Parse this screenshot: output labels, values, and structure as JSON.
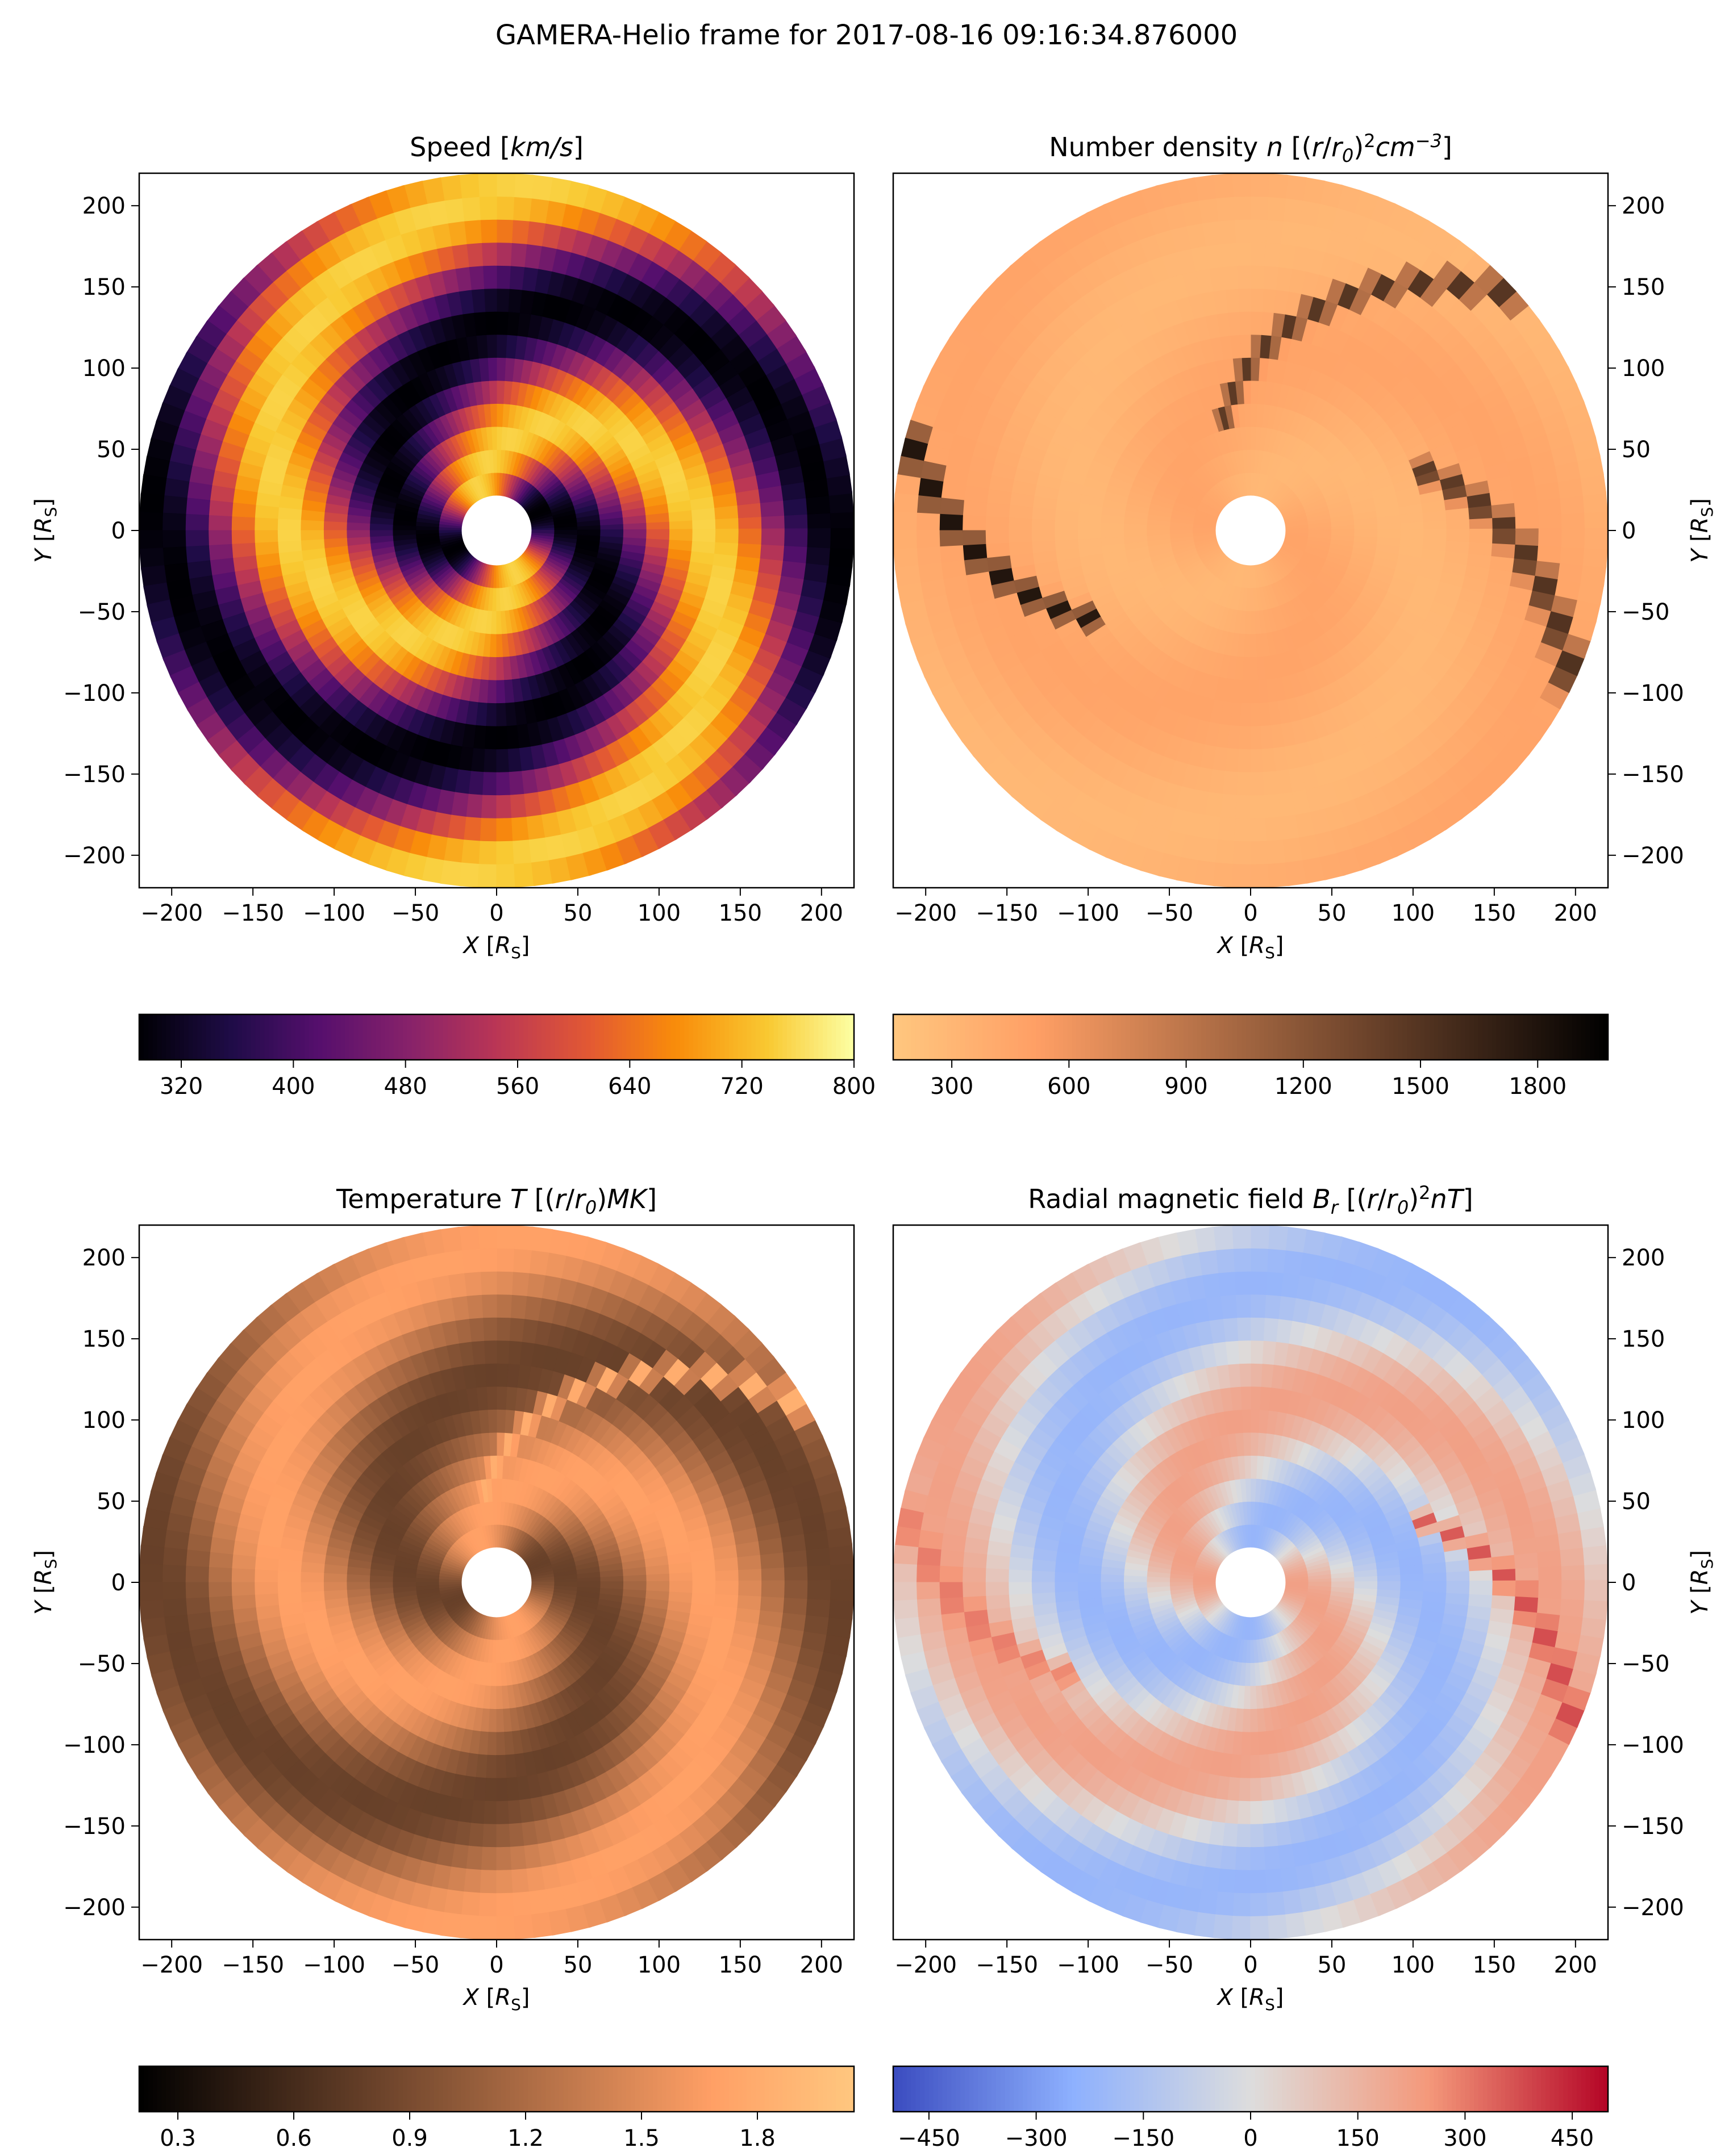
{
  "figure_title": "GAMERA-Helio frame for 2017-08-16 09:16:34.876000",
  "chart_data": [
    {
      "type": "heatmap",
      "title_text": "Speed [",
      "title_math": "km/s",
      "title_tail": "]",
      "xlabel": "X [R",
      "xlabel_sub": "S",
      "ylabel": "Y [R",
      "ylabel_sub": "S",
      "axis_unit_close": "]",
      "xlim": [
        -220,
        220
      ],
      "ylim": [
        -220,
        220
      ],
      "xticks": [
        -200,
        -150,
        -100,
        -50,
        0,
        50,
        100,
        150,
        200
      ],
      "yticks": [
        -200,
        -150,
        -100,
        -50,
        0,
        50,
        100,
        150,
        200
      ],
      "ytick_side": "left",
      "domain": {
        "inner_radius": 21.5,
        "outer_radius": 220
      },
      "colormap": "inferno",
      "colorbar": {
        "min": 290,
        "max": 800,
        "ticks": [
          320,
          400,
          480,
          560,
          640,
          720,
          800
        ]
      },
      "field": {
        "base": 520,
        "amp": 230,
        "spiral": 0.006,
        "phase": 2.75
      },
      "features": []
    },
    {
      "type": "heatmap",
      "title_text": "Number density ",
      "title_math": "n",
      "title_tail": " [(r/r0)2cm-3]",
      "xlabel": "X [R",
      "xlabel_sub": "S",
      "ylabel": "Y [R",
      "ylabel_sub": "S",
      "axis_unit_close": "]",
      "xlim": [
        -220,
        220
      ],
      "ylim": [
        -220,
        220
      ],
      "xticks": [
        -200,
        -150,
        -100,
        -50,
        0,
        50,
        100,
        150,
        200
      ],
      "yticks": [
        -200,
        -150,
        -100,
        -50,
        0,
        50,
        100,
        150,
        200
      ],
      "ytick_side": "right",
      "domain": {
        "inner_radius": 21.5,
        "outer_radius": 220
      },
      "colormap": "copper_r",
      "colorbar": {
        "min": 150,
        "max": 1980,
        "ticks": [
          300,
          600,
          900,
          1200,
          1500,
          1800
        ]
      },
      "field": {
        "base": 380,
        "amp": 90,
        "spiral": 0.006,
        "phase": 0.9
      },
      "features": [
        {
          "angle_deg": 108,
          "start_r": 60,
          "end_r": 220,
          "value": 1500
        },
        {
          "angle_deg": 20,
          "start_r": 110,
          "end_r": 220,
          "value": 1700
        },
        {
          "angle_deg": 210,
          "start_r": 110,
          "end_r": 220,
          "value": 1800
        }
      ]
    },
    {
      "type": "heatmap",
      "title_text": "Temperature ",
      "title_math": "T",
      "title_tail": " [(r/r0)MK]",
      "xlabel": "X [R",
      "xlabel_sub": "S",
      "ylabel": "Y [R",
      "ylabel_sub": "S",
      "axis_unit_close": "]",
      "xlim": [
        -220,
        220
      ],
      "ylim": [
        -220,
        220
      ],
      "xticks": [
        -200,
        -150,
        -100,
        -50,
        0,
        50,
        100,
        150,
        200
      ],
      "yticks": [
        -200,
        -150,
        -100,
        -50,
        0,
        50,
        100,
        150,
        200
      ],
      "ytick_side": "left",
      "domain": {
        "inner_radius": 21.5,
        "outer_radius": 220
      },
      "colormap": "copper",
      "colorbar": {
        "min": 0.2,
        "max": 2.05,
        "ticks": [
          0.3,
          0.6,
          0.9,
          1.2,
          1.5,
          1.8
        ]
      },
      "field": {
        "base": 1.25,
        "amp": 0.45,
        "spiral": 0.006,
        "phase": 2.75
      },
      "features": [
        {
          "angle_deg": 100,
          "start_r": 50,
          "end_r": 220,
          "value": 1.85
        }
      ]
    },
    {
      "type": "heatmap",
      "title_text": "Radial magnetic field ",
      "title_math": "Br",
      "title_tail": " [(r/r0)2nT]",
      "xlabel": "X [R",
      "xlabel_sub": "S",
      "ylabel": "Y [R",
      "ylabel_sub": "S",
      "axis_unit_close": "]",
      "xlim": [
        -220,
        220
      ],
      "ylim": [
        -220,
        220
      ],
      "xticks": [
        -200,
        -150,
        -100,
        -50,
        0,
        50,
        100,
        150,
        200
      ],
      "yticks": [
        -200,
        -150,
        -100,
        -50,
        0,
        50,
        100,
        150,
        200
      ],
      "ytick_side": "right",
      "domain": {
        "inner_radius": 21.5,
        "outer_radius": 220
      },
      "colormap": "coolwarm",
      "colorbar": {
        "min": -500,
        "max": 500,
        "ticks": [
          -450,
          -300,
          -150,
          0,
          150,
          300,
          450
        ]
      },
      "field": {
        "base": 0,
        "amp": 220,
        "spiral": 0.006,
        "phase": 0.55
      },
      "features": [
        {
          "angle_deg": 25,
          "start_r": 100,
          "end_r": 220,
          "value": 380
        },
        {
          "angle_deg": 210,
          "start_r": 120,
          "end_r": 220,
          "value": 320
        }
      ]
    }
  ]
}
